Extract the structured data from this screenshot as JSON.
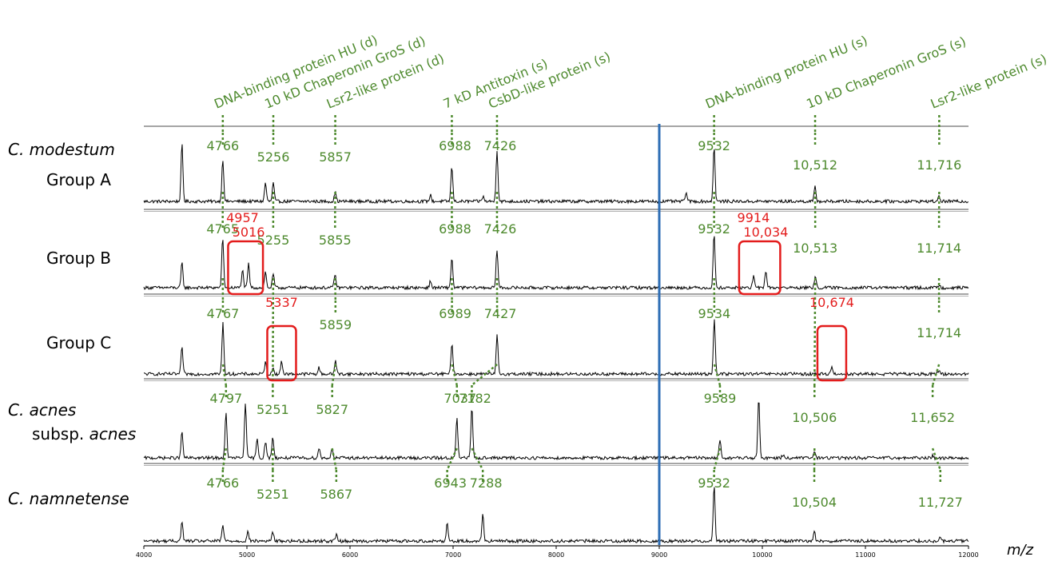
{
  "chart_data": {
    "type": "line",
    "xlabel": "m/z",
    "xlim": [
      4000,
      12000
    ],
    "x_ticks": [
      4000,
      5000,
      6000,
      7000,
      8000,
      9000,
      10000,
      11000,
      12000
    ],
    "colors": {
      "assigned": "#4e8a2e",
      "new_peak": "#e31c1c",
      "divider": "#2d6db5",
      "trace": "#000000"
    },
    "panel_separator_mz": 9000,
    "samples": [
      {
        "species": "C. modestum",
        "group": "Group A"
      },
      {
        "species": "",
        "group": "Group B"
      },
      {
        "species": "",
        "group": "Group C"
      },
      {
        "species": "C. acnes",
        "group": "subsp. acnes"
      },
      {
        "species": "C. namnetense",
        "group": ""
      }
    ],
    "proteins": [
      {
        "name": "DNA-binding protein HU (d)",
        "values": [
          4766,
          4765,
          4767,
          4797,
          4766
        ]
      },
      {
        "name": "10 kD Chaperonin GroS (d)",
        "values": [
          5256,
          5255,
          null,
          5251,
          5251
        ]
      },
      {
        "name": "Lsr2-like protein (d)",
        "values": [
          5857,
          5855,
          5859,
          5827,
          5867
        ]
      },
      {
        "name": "7 kD Antitoxin (s)",
        "values": [
          6988,
          6988,
          6989,
          7037,
          6943
        ]
      },
      {
        "name": "CsbD-like protein (s)",
        "values": [
          7426,
          7426,
          7427,
          7182,
          7288
        ]
      },
      {
        "name": "DNA-binding protein HU (s)",
        "values": [
          9532,
          9532,
          9534,
          9589,
          9532
        ]
      },
      {
        "name": "10 kD Chaperonin GroS (s)",
        "values": [
          10512,
          10513,
          null,
          10506,
          10504
        ]
      },
      {
        "name": "Lsr2-like protein (s)",
        "values": [
          11716,
          11714,
          11714,
          11652,
          11727
        ]
      }
    ],
    "peak_labels": [
      [
        "4766",
        "5256",
        "5857",
        "6988",
        "7426",
        "9532",
        "10,512",
        "11,716"
      ],
      [
        "4765",
        "5255",
        "5855",
        "6988",
        "7426",
        "9532",
        "10,513",
        "11,714"
      ],
      [
        "4767",
        "",
        "5859",
        "6989",
        "7427",
        "9534",
        "",
        "11,714"
      ],
      [
        "4797",
        "5251",
        "5827",
        "7037",
        "7182",
        "9589",
        "10,506",
        "11,652"
      ],
      [
        "4766",
        "5251",
        "5867",
        "6943",
        "7288",
        "9532",
        "10,504",
        "11,727"
      ]
    ],
    "highlighted_peaks": [
      {
        "sample": 1,
        "labels": [
          "4957",
          "5016"
        ],
        "values": [
          4957,
          5016
        ]
      },
      {
        "sample": 1,
        "labels": [
          "9914",
          "10,034"
        ],
        "values": [
          9914,
          10034
        ]
      },
      {
        "sample": 2,
        "labels": [
          "5337"
        ],
        "values": [
          5337
        ]
      },
      {
        "sample": 2,
        "labels": [
          "10,674"
        ],
        "values": [
          10674
        ]
      }
    ],
    "series": [
      {
        "name": "Group A",
        "peaks": [
          [
            4370,
            0.92
          ],
          [
            4766,
            0.68
          ],
          [
            5180,
            0.3
          ],
          [
            5256,
            0.3
          ],
          [
            5857,
            0.15
          ],
          [
            6780,
            0.1
          ],
          [
            6988,
            0.56
          ],
          [
            7290,
            0.08
          ],
          [
            7426,
            0.83
          ],
          [
            9260,
            0.15
          ],
          [
            9532,
            0.88
          ],
          [
            10512,
            0.23
          ],
          [
            11716,
            0.08
          ]
        ]
      },
      {
        "name": "Group B",
        "peaks": [
          [
            4370,
            0.4
          ],
          [
            4765,
            0.8
          ],
          [
            4957,
            0.28
          ],
          [
            5016,
            0.38
          ],
          [
            5180,
            0.25
          ],
          [
            5255,
            0.22
          ],
          [
            5855,
            0.22
          ],
          [
            6780,
            0.1
          ],
          [
            6988,
            0.48
          ],
          [
            7426,
            0.62
          ],
          [
            9532,
            0.88
          ],
          [
            9914,
            0.18
          ],
          [
            10034,
            0.28
          ],
          [
            10513,
            0.18
          ],
          [
            11714,
            0.05
          ]
        ]
      },
      {
        "name": "Group C",
        "peaks": [
          [
            4370,
            0.42
          ],
          [
            4767,
            0.8
          ],
          [
            5180,
            0.18
          ],
          [
            5255,
            0.1
          ],
          [
            5337,
            0.2
          ],
          [
            5700,
            0.1
          ],
          [
            5859,
            0.22
          ],
          [
            6989,
            0.5
          ],
          [
            7427,
            0.6
          ],
          [
            9534,
            0.88
          ],
          [
            10674,
            0.12
          ],
          [
            11714,
            0.06
          ]
        ]
      },
      {
        "name": "subsp. acnes",
        "peaks": [
          [
            4370,
            0.4
          ],
          [
            4797,
            0.68
          ],
          [
            4985,
            0.85
          ],
          [
            5100,
            0.3
          ],
          [
            5180,
            0.25
          ],
          [
            5251,
            0.32
          ],
          [
            5700,
            0.15
          ],
          [
            5827,
            0.15
          ],
          [
            7037,
            0.6
          ],
          [
            7182,
            0.8
          ],
          [
            9589,
            0.28
          ],
          [
            9965,
            0.9
          ],
          [
            10200,
            0.05
          ],
          [
            10506,
            0.1
          ],
          [
            11652,
            0.03
          ]
        ]
      },
      {
        "name": "C. namnetense",
        "peaks": [
          [
            4370,
            0.3
          ],
          [
            4766,
            0.25
          ],
          [
            5010,
            0.15
          ],
          [
            5251,
            0.15
          ],
          [
            5867,
            0.1
          ],
          [
            6943,
            0.28
          ],
          [
            7288,
            0.43
          ],
          [
            9532,
            0.88
          ],
          [
            10504,
            0.15
          ],
          [
            11727,
            0.05
          ]
        ]
      }
    ]
  }
}
